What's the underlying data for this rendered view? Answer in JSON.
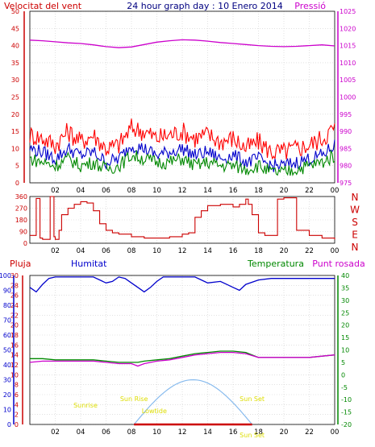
{
  "chart_data": [
    {
      "type": "line",
      "title": "24 hour graph day : 10 Enero 2014",
      "ylabel_left": "Velocitat del vent",
      "ylabel_right": "Pressió",
      "y_left_range": [
        0,
        50
      ],
      "y_left_ticks": [
        "0",
        "5",
        "10",
        "15",
        "20",
        "25",
        "30",
        "35",
        "40",
        "45",
        "50"
      ],
      "y_right_range": [
        975,
        1025
      ],
      "y_right_ticks": [
        "975",
        "980",
        "985",
        "990",
        "995",
        "1000",
        "1005",
        "1010",
        "1015",
        "1020",
        "1025"
      ],
      "x_ticks": [
        "02",
        "04",
        "06",
        "08",
        "10",
        "12",
        "14",
        "16",
        "18",
        "20",
        "22",
        "00"
      ],
      "grid": true,
      "colors": {
        "gust": "#ff0000",
        "speed": "#0000cc",
        "avg": "#008800",
        "pressure": "#cc00cc",
        "axis_left": "#cc0000",
        "axis_right": "#cc00cc"
      },
      "series": [
        {
          "name": "Pressió",
          "axis": "right",
          "x": [
            0,
            1,
            2,
            3,
            4,
            5,
            6,
            7,
            8,
            9,
            10,
            11,
            12,
            13,
            14,
            15,
            16,
            17,
            18,
            19,
            20,
            21,
            22,
            23,
            24
          ],
          "values": [
            1016.6,
            1016.4,
            1016.1,
            1015.8,
            1015.6,
            1015.2,
            1014.7,
            1014.4,
            1014.6,
            1015.3,
            1016.0,
            1016.4,
            1016.7,
            1016.6,
            1016.3,
            1015.9,
            1015.6,
            1015.3,
            1015.0,
            1014.8,
            1014.7,
            1014.8,
            1015.0,
            1015.2,
            1014.9
          ]
        },
        {
          "name": "gust",
          "axis": "left",
          "x": [
            0,
            1,
            2,
            3,
            4,
            5,
            6,
            7,
            8,
            9,
            10,
            11,
            12,
            13,
            14,
            15,
            16,
            17,
            18,
            19,
            20,
            21,
            22,
            23,
            24
          ],
          "values": [
            14,
            13,
            11,
            15,
            12,
            14,
            10,
            11,
            16,
            15,
            13,
            14,
            15,
            13,
            14,
            12,
            13,
            10,
            12,
            9,
            9,
            10,
            11,
            13,
            16
          ]
        },
        {
          "name": "speed",
          "axis": "left",
          "x": [
            0,
            1,
            2,
            3,
            4,
            5,
            6,
            7,
            8,
            9,
            10,
            11,
            12,
            13,
            14,
            15,
            16,
            17,
            18,
            19,
            20,
            21,
            22,
            23,
            24
          ],
          "values": [
            10,
            9,
            7,
            10,
            8,
            9,
            6,
            7,
            11,
            10,
            8,
            9,
            10,
            8,
            9,
            7,
            8,
            6,
            7,
            5,
            5,
            6,
            7,
            8,
            11
          ]
        },
        {
          "name": "avg",
          "axis": "left",
          "x": [
            0,
            1,
            2,
            3,
            4,
            5,
            6,
            7,
            8,
            9,
            10,
            11,
            12,
            13,
            14,
            15,
            16,
            17,
            18,
            19,
            20,
            21,
            22,
            23,
            24
          ],
          "values": [
            7,
            6,
            5,
            7,
            5,
            6,
            4,
            5,
            8,
            7,
            6,
            6,
            7,
            5,
            6,
            5,
            5,
            4,
            5,
            3,
            3,
            4,
            5,
            6,
            8
          ]
        }
      ]
    },
    {
      "type": "line",
      "ylabel_right_letters": [
        "N",
        "W",
        "S",
        "E",
        "N"
      ],
      "y_range": [
        0,
        360
      ],
      "y_ticks": [
        "0",
        "90",
        "180",
        "270",
        "360"
      ],
      "x_ticks": [
        "02",
        "04",
        "06",
        "08",
        "10",
        "12",
        "14",
        "16",
        "18",
        "20",
        "22",
        "00"
      ],
      "grid": true,
      "colors": {
        "direction": "#cc0000",
        "axis": "#cc0000"
      },
      "series": [
        {
          "name": "direction",
          "x": [
            0,
            0.4,
            0.5,
            0.8,
            1.0,
            1.3,
            1.6,
            1.9,
            2.0,
            2.3,
            2.5,
            3.0,
            3.5,
            4.0,
            4.5,
            5.0,
            5.5,
            6.0,
            6.5,
            7.0,
            8.0,
            9.0,
            10.0,
            11.0,
            12.0,
            12.5,
            13.0,
            13.5,
            14.0,
            15.0,
            16.0,
            16.5,
            17.0,
            17.2,
            17.5,
            18.0,
            18.5,
            19.0,
            19.5,
            20.0,
            20.5,
            21.0,
            22.0,
            23.0,
            24.0
          ],
          "values": [
            60,
            60,
            345,
            40,
            30,
            30,
            360,
            50,
            30,
            100,
            220,
            270,
            300,
            320,
            310,
            250,
            150,
            100,
            80,
            70,
            50,
            40,
            40,
            50,
            70,
            80,
            200,
            250,
            290,
            300,
            280,
            300,
            340,
            300,
            220,
            80,
            60,
            60,
            340,
            350,
            350,
            100,
            60,
            40,
            30
          ]
        }
      ]
    },
    {
      "type": "line",
      "legend": [
        "Pluja",
        "Humitat",
        "Temperatura",
        "Punt rosada"
      ],
      "y_rain_range": [
        0,
        30
      ],
      "y_rain_ticks": [
        "0",
        "2",
        "4",
        "6",
        "8",
        "10",
        "12",
        "14",
        "16",
        "18",
        "20",
        "22",
        "24",
        "26",
        "28",
        "30"
      ],
      "y_hum_range": [
        0,
        100
      ],
      "y_hum_ticks": [
        "0",
        "10",
        "20",
        "30",
        "40",
        "50",
        "60",
        "70",
        "80",
        "90",
        "100"
      ],
      "y_temp_range": [
        -20,
        40
      ],
      "y_temp_ticks": [
        "-20",
        "-15",
        "-10",
        "-5",
        "0",
        "5",
        "10",
        "15",
        "20",
        "25",
        "30",
        "35",
        "40"
      ],
      "x_ticks": [
        "02",
        "04",
        "06",
        "08",
        "10",
        "12",
        "14",
        "16",
        "18",
        "20",
        "22",
        "00"
      ],
      "grid": true,
      "colors": {
        "rain": "#cc0000",
        "humidity": "#0000cc",
        "temperature": "#008800",
        "dewpoint": "#cc00cc",
        "axis_rain": "#cc0000",
        "axis_hum": "#0000cc",
        "axis_temp": "#008800",
        "sun": "#88bbee",
        "sun_label": "#dddd00"
      },
      "series": [
        {
          "name": "Humitat",
          "axis": "humidity",
          "x": [
            0,
            0.5,
            1,
            1.5,
            2,
            3,
            4,
            5,
            6,
            6.5,
            7,
            7.5,
            8,
            8.5,
            9,
            9.5,
            10,
            10.5,
            11,
            12,
            13,
            14,
            15,
            15.5,
            16,
            16.5,
            17,
            18,
            19,
            20,
            21,
            22,
            23,
            24
          ],
          "values": [
            92,
            89,
            94,
            98,
            99,
            99,
            99,
            99,
            95,
            96,
            99,
            98,
            95,
            92,
            89,
            92,
            96,
            99,
            99,
            99,
            99,
            95,
            96,
            94,
            92,
            90,
            94,
            97,
            98,
            98,
            98,
            98,
            98,
            98
          ]
        },
        {
          "name": "Temperatura",
          "axis": "temperature",
          "x": [
            0,
            1,
            2,
            3,
            4,
            5,
            6,
            7,
            8,
            8.5,
            9,
            10,
            11,
            12,
            13,
            14,
            15,
            16,
            17,
            18,
            19,
            20,
            21,
            22,
            23,
            24
          ],
          "values": [
            6.5,
            6.5,
            6.0,
            6.0,
            6.0,
            6.0,
            5.5,
            5.0,
            5.0,
            5.0,
            5.5,
            6.0,
            6.5,
            7.5,
            8.5,
            9.0,
            9.5,
            9.5,
            9.0,
            7.0,
            7.0,
            7.0,
            7.0,
            7.0,
            7.5,
            8.0
          ]
        },
        {
          "name": "Punt rosada",
          "axis": "temperature",
          "x": [
            0,
            1,
            2,
            3,
            4,
            5,
            6,
            7,
            8,
            8.5,
            9,
            10,
            11,
            12,
            13,
            14,
            15,
            16,
            17,
            18,
            19,
            20,
            21,
            22,
            23,
            24
          ],
          "values": [
            5.0,
            5.5,
            5.5,
            5.5,
            5.5,
            5.5,
            5.0,
            4.5,
            4.5,
            3.5,
            4.5,
            5.5,
            6.0,
            7.0,
            8.0,
            8.5,
            9.0,
            9.0,
            8.5,
            7.0,
            7.0,
            7.0,
            7.0,
            7.0,
            7.5,
            8.0
          ]
        },
        {
          "name": "Pluja",
          "axis": "rain",
          "x": [
            0,
            24
          ],
          "values": [
            0,
            0
          ]
        }
      ],
      "sun_events": [
        {
          "label": "Sunrise",
          "x": 8.2
        },
        {
          "label": "Sun Rise",
          "x": 8.2
        },
        {
          "label": "Lowtide",
          "x": 13.8
        },
        {
          "label": "Sun Set",
          "x": 17.5
        },
        {
          "label": "Sun Set",
          "x": 17.5
        }
      ]
    }
  ]
}
